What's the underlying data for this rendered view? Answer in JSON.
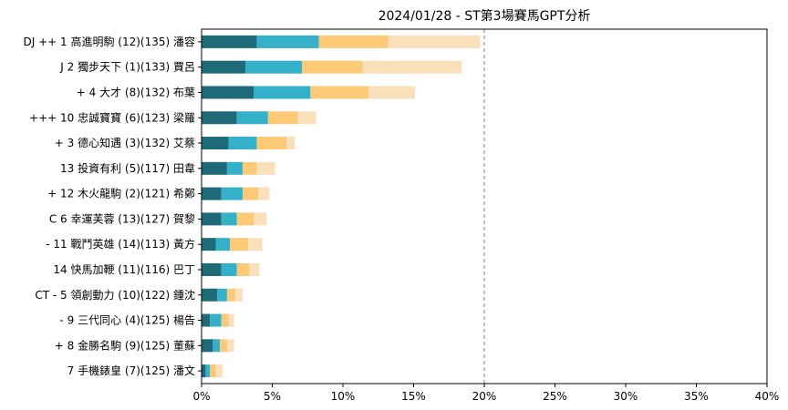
{
  "chart_data": {
    "type": "bar",
    "orientation": "horizontal",
    "stacked": true,
    "title": "2024/01/28 - ST第3場賽馬GPT分析",
    "xlabel": "",
    "ylabel": "",
    "xlim": [
      0,
      40
    ],
    "xtick_labels": [
      "0%",
      "5%",
      "10%",
      "15%",
      "20%",
      "25%",
      "30%",
      "35%",
      "40%"
    ],
    "xtick_values": [
      0,
      5,
      10,
      15,
      20,
      25,
      30,
      35,
      40
    ],
    "reference_line": 20,
    "colors": [
      "#1f6a78",
      "#34b0c9",
      "#fcc977",
      "#f9e0bb"
    ],
    "categories": [
      "DJ ++ 1 高進明駒 (12)(135) 潘容",
      "J 2 獨步天下 (1)(133) 賈呂",
      "+ 4 大才 (8)(132) 布葉",
      "+++ 10 忠誠寶寶 (6)(123) 梁羅",
      "+ 3 德心知遇 (3)(132) 艾蔡",
      "13 投資有利 (5)(117) 田韋",
      "+ 12 木火龍駒 (2)(121) 希鄭",
      "C 6 幸運芙蓉 (13)(127) 賀黎",
      "- 11 戰鬥英雄 (14)(113) 黃方",
      "14 快馬加鞭 (11)(116) 巴丁",
      "CT - 5 領創動力 (10)(122) 鍾沈",
      "- 9 三代同心 (4)(125) 楊告",
      "+ 8 金勝名駒 (9)(125) 董蘇",
      "7 手機錶皇 (7)(125) 潘文"
    ],
    "series": [
      {
        "values": [
          3.9,
          3.1,
          3.7,
          2.5,
          1.9,
          1.8,
          1.4,
          1.4,
          1.0,
          1.4,
          1.1,
          0.6,
          0.8,
          0.3
        ]
      },
      {
        "values": [
          4.4,
          4.0,
          4.0,
          2.2,
          2.0,
          1.1,
          1.5,
          1.1,
          1.0,
          1.1,
          0.7,
          0.8,
          0.5,
          0.3
        ]
      },
      {
        "values": [
          4.9,
          4.3,
          4.1,
          2.1,
          2.1,
          1.0,
          1.1,
          1.2,
          1.3,
          0.9,
          0.6,
          0.5,
          0.5,
          0.4
        ]
      },
      {
        "values": [
          6.5,
          7.0,
          3.3,
          1.3,
          0.6,
          1.3,
          0.8,
          0.9,
          1.0,
          0.7,
          0.5,
          0.4,
          0.5,
          0.5
        ]
      }
    ]
  }
}
